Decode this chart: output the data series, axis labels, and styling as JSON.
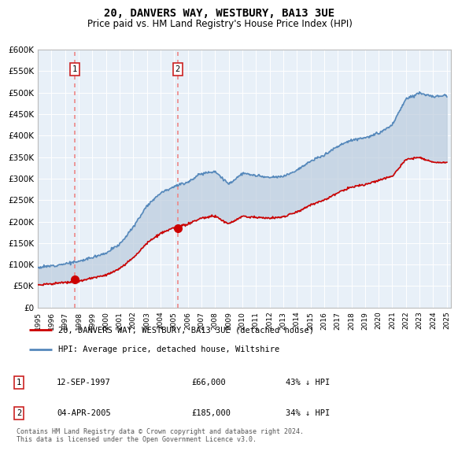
{
  "title": "20, DANVERS WAY, WESTBURY, BA13 3UE",
  "subtitle": "Price paid vs. HM Land Registry's House Price Index (HPI)",
  "ylim": [
    0,
    600000
  ],
  "yticks": [
    0,
    50000,
    100000,
    150000,
    200000,
    250000,
    300000,
    350000,
    400000,
    450000,
    500000,
    550000,
    600000
  ],
  "ytick_labels": [
    "£0",
    "£50K",
    "£100K",
    "£150K",
    "£200K",
    "£250K",
    "£300K",
    "£350K",
    "£400K",
    "£450K",
    "£500K",
    "£550K",
    "£600K"
  ],
  "plot_bg": "#e8f0f8",
  "fig_bg": "#ffffff",
  "sale1_date": 1997.71,
  "sale1_price": 66000,
  "sale2_date": 2005.26,
  "sale2_price": 185000,
  "legend_red": "20, DANVERS WAY, WESTBURY, BA13 3UE (detached house)",
  "legend_blue": "HPI: Average price, detached house, Wiltshire",
  "table_row1": [
    "1",
    "12-SEP-1997",
    "£66,000",
    "43% ↓ HPI"
  ],
  "table_row2": [
    "2",
    "04-APR-2005",
    "£185,000",
    "34% ↓ HPI"
  ],
  "footer": "Contains HM Land Registry data © Crown copyright and database right 2024.\nThis data is licensed under the Open Government Licence v3.0.",
  "red_color": "#cc0000",
  "blue_color": "#5588bb",
  "fill_color": "#bbccdd",
  "grid_color": "#ccccdd",
  "dashed_color": "#ee8888",
  "box_edge_color": "#cc2222"
}
